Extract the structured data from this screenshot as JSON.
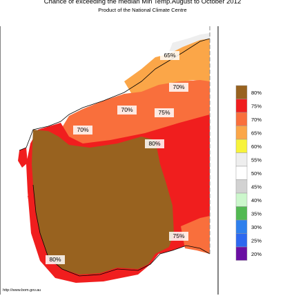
{
  "title": "Chance of exceeding the median Min Temp.August to October 2012",
  "subtitle": "Product of the National Climate Centre",
  "footer_url": "http://www.bom.gov.au",
  "map_labels": {
    "p65": "65%",
    "p70_north": "70%",
    "p70_mid": "70%",
    "p75_east": "75%",
    "p70_west": "70%",
    "p80_center": "80%",
    "p75_southeast": "75%",
    "p80_southwest": "80%"
  },
  "legend": [
    {
      "label": "80%",
      "color": "#98621f"
    },
    {
      "label": "75%",
      "color": "#f01e1e"
    },
    {
      "label": "70%",
      "color": "#f96f3c"
    },
    {
      "label": "65%",
      "color": "#fba648"
    },
    {
      "label": "60%",
      "color": "#f7f33b"
    },
    {
      "label": "55%",
      "color": "#eeeeee"
    },
    {
      "label": "50%",
      "color": "#ffffff"
    },
    {
      "label": "45%",
      "color": "#d2d2d2"
    },
    {
      "label": "40%",
      "color": "#ccf7cc"
    },
    {
      "label": "35%",
      "color": "#52b952"
    },
    {
      "label": "30%",
      "color": "#2f80ed"
    },
    {
      "label": "25%",
      "color": "#2d68f0"
    },
    {
      "label": "20%",
      "color": "#6a0ea3"
    }
  ],
  "colors": {
    "ocean": "#ffffff",
    "outline": "#000000",
    "border_line": "#888888"
  }
}
